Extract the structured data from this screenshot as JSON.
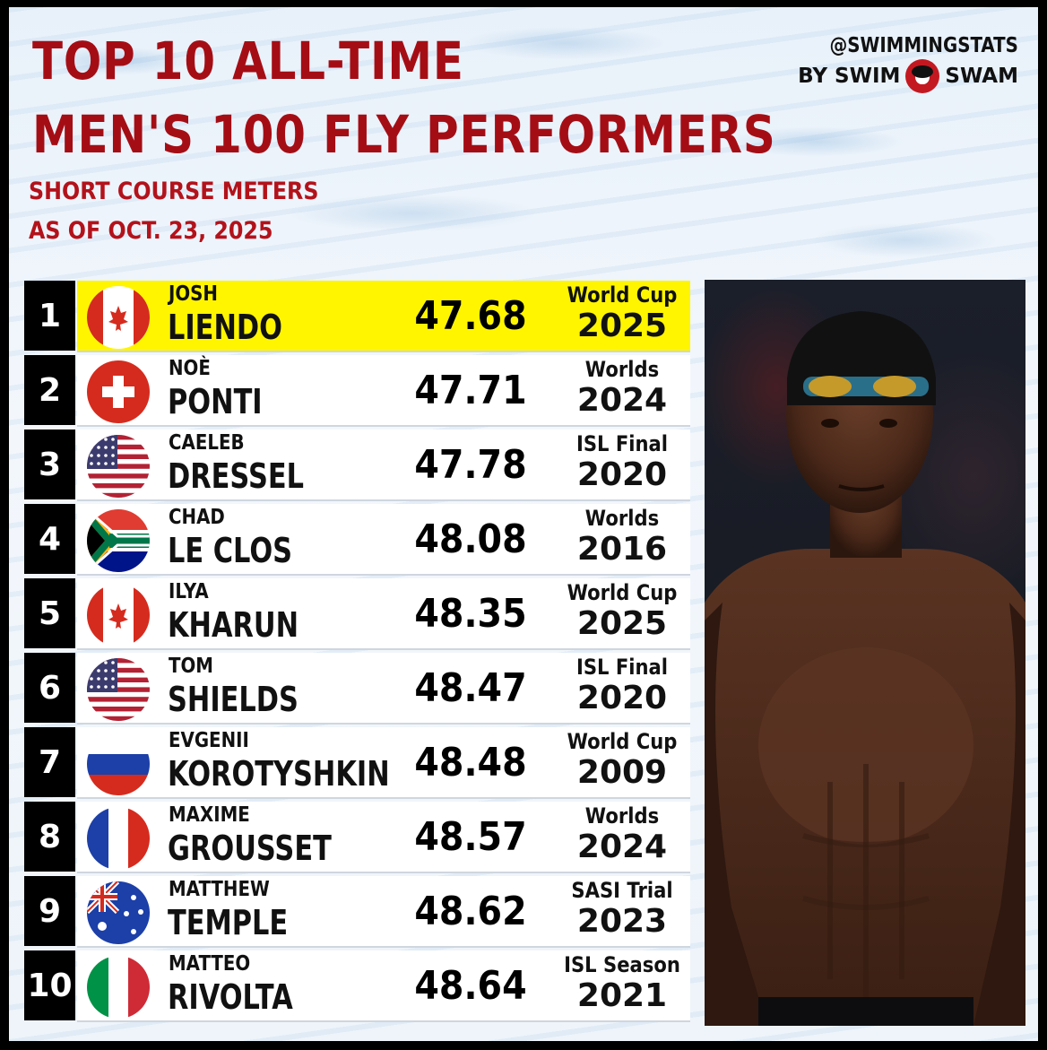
{
  "header": {
    "title_line1": "TOP 10 ALL-TIME",
    "title_line2": "MEN'S 100 FLY PERFORMERS",
    "subtitle1": "SHORT COURSE METERS",
    "subtitle2": "AS OF OCT. 23, 2025",
    "handle": "@SWIMMINGSTATS",
    "byline_left": "BY SWIM",
    "byline_right": "SWAM"
  },
  "colors": {
    "title_red": "#a50d15",
    "highlight_yellow": "#fff500",
    "rank_bg": "#000000"
  },
  "rows": [
    {
      "rank": "1",
      "flag": "canada-flag-icon",
      "first": "JOSH",
      "last": "LIENDO",
      "time": "47.68",
      "meet": "World Cup",
      "year": "2025",
      "highlight": true
    },
    {
      "rank": "2",
      "flag": "switzerland-flag-icon",
      "first": "NOÈ",
      "last": "PONTI",
      "time": "47.71",
      "meet": "Worlds",
      "year": "2024"
    },
    {
      "rank": "3",
      "flag": "usa-flag-icon",
      "first": "CAELEB",
      "last": "DRESSEL",
      "time": "47.78",
      "meet": "ISL Final",
      "year": "2020"
    },
    {
      "rank": "4",
      "flag": "south-africa-flag-icon",
      "first": "CHAD",
      "last": "LE CLOS",
      "time": "48.08",
      "meet": "Worlds",
      "year": "2016"
    },
    {
      "rank": "5",
      "flag": "canada-flag-icon",
      "first": "ILYA",
      "last": "KHARUN",
      "time": "48.35",
      "meet": "World Cup",
      "year": "2025"
    },
    {
      "rank": "6",
      "flag": "usa-flag-icon",
      "first": "TOM",
      "last": "SHIELDS",
      "time": "48.47",
      "meet": "ISL Final",
      "year": "2020"
    },
    {
      "rank": "7",
      "flag": "russia-flag-icon",
      "first": "EVGENII",
      "last": "KOROTYSHKIN",
      "time": "48.48",
      "meet": "World Cup",
      "year": "2009"
    },
    {
      "rank": "8",
      "flag": "france-flag-icon",
      "first": "MAXIME",
      "last": "GROUSSET",
      "time": "48.57",
      "meet": "Worlds",
      "year": "2024"
    },
    {
      "rank": "9",
      "flag": "australia-flag-icon",
      "first": "MATTHEW",
      "last": "TEMPLE",
      "time": "48.62",
      "meet": "SASI Trial",
      "year": "2023"
    },
    {
      "rank": "10",
      "flag": "italy-flag-icon",
      "first": "MATTEO",
      "last": "RIVOLTA",
      "time": "48.64",
      "meet": "ISL Season",
      "year": "2021"
    }
  ]
}
